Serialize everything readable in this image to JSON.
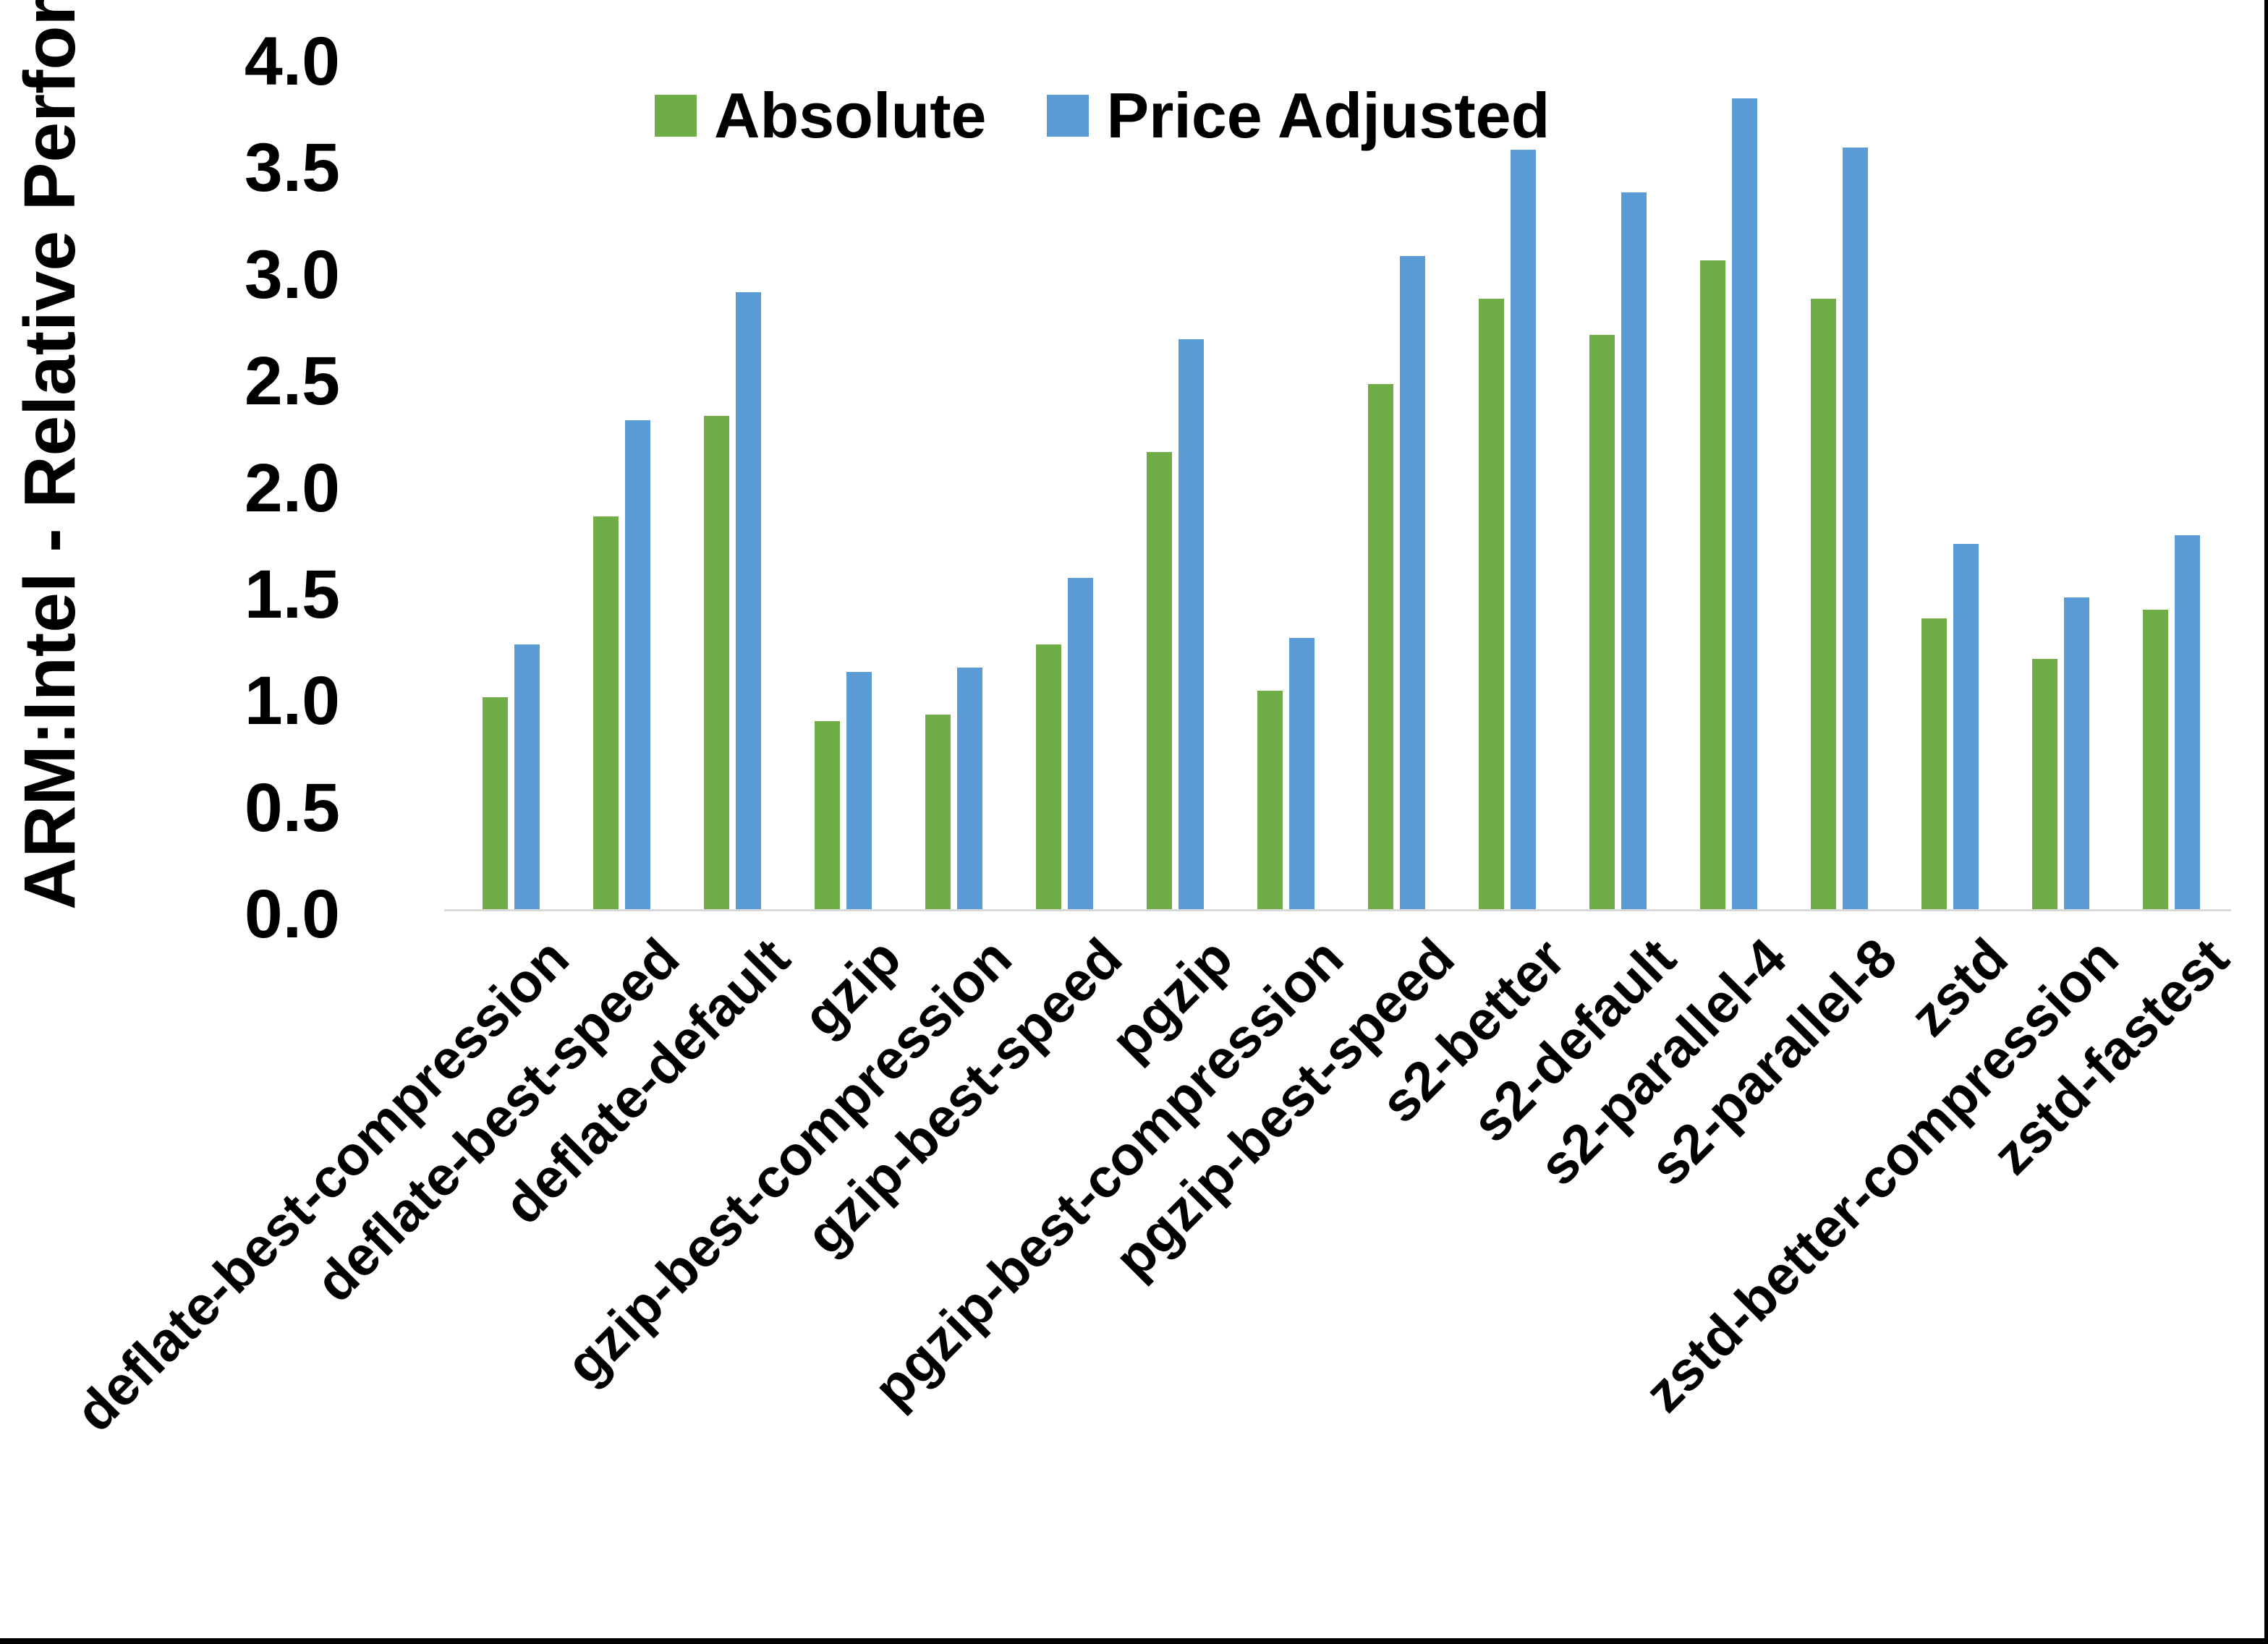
{
  "chart_data": {
    "type": "bar",
    "title": "",
    "ylabel": "ARM:Intel - Relative Performance",
    "xlabel": "",
    "ylim": [
      0,
      4
    ],
    "ytick_labels": [
      "0.0",
      "0.5",
      "1.0",
      "1.5",
      "2.0",
      "2.5",
      "3.0",
      "3.5",
      "4.0"
    ],
    "grid": false,
    "legend_position": "top-center",
    "categories": [
      "deflate-best-compression",
      "deflate-best-speed",
      "deflate-default",
      "gzip",
      "gzip-best-compression",
      "gzip-best-speed",
      "pgzip",
      "pgzip-best-compression",
      "pgzip-best-speed",
      "s2-better",
      "s2-default",
      "s2-parallel-4",
      "s2-parallel-8",
      "zstd",
      "zstd-better-compression",
      "zstd-fastest"
    ],
    "series": [
      {
        "name": "Absolute",
        "color": "#70AD47",
        "values": [
          1.0,
          1.85,
          2.32,
          0.89,
          0.92,
          1.25,
          2.15,
          1.03,
          2.47,
          2.87,
          2.7,
          3.05,
          2.87,
          1.37,
          1.18,
          1.41
        ]
      },
      {
        "name": "Price Adjusted",
        "color": "#5B9BD5",
        "values": [
          1.25,
          2.3,
          2.9,
          1.12,
          1.14,
          1.56,
          2.68,
          1.28,
          3.07,
          3.57,
          3.37,
          3.81,
          3.58,
          1.72,
          1.47,
          1.76
        ]
      }
    ]
  },
  "colors": {
    "background": "#FFFFFF",
    "axis_line": "#D9D9D9",
    "text": "#000000",
    "frame_border": "#000000"
  }
}
